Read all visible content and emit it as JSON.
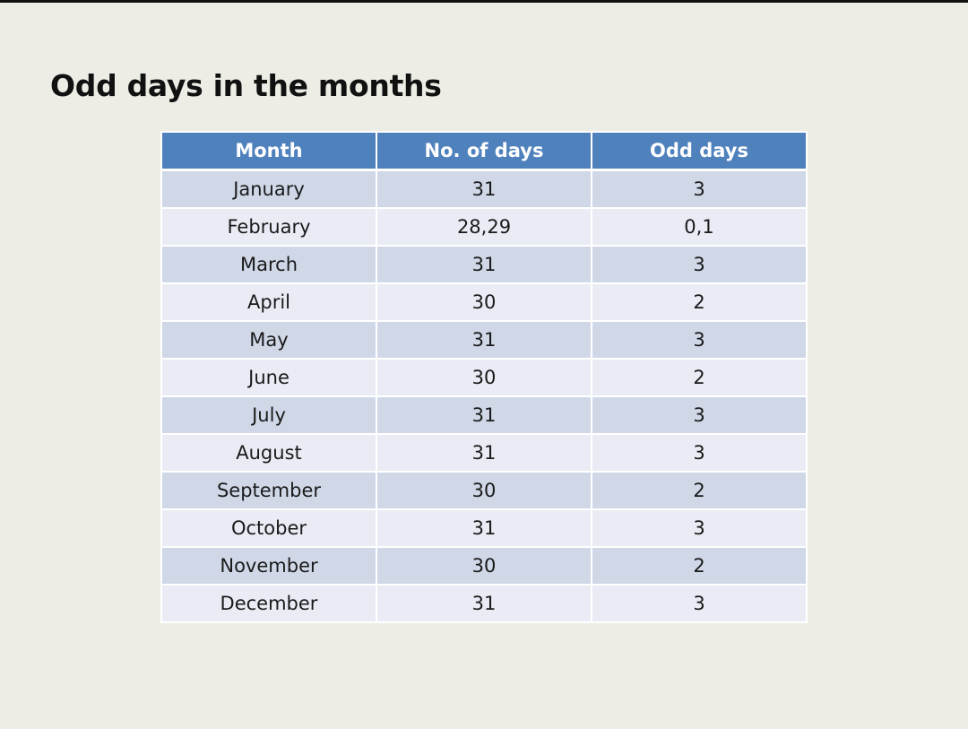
{
  "title": "Odd days in the months",
  "table": {
    "headers": [
      "Month",
      "No. of days",
      "Odd days"
    ],
    "rows": [
      [
        "January",
        "31",
        "3"
      ],
      [
        "February",
        "28,29",
        "0,1"
      ],
      [
        "March",
        "31",
        "3"
      ],
      [
        "April",
        "30",
        "2"
      ],
      [
        "May",
        "31",
        "3"
      ],
      [
        "June",
        "30",
        "2"
      ],
      [
        "July",
        "31",
        "3"
      ],
      [
        "August",
        "31",
        "3"
      ],
      [
        "September",
        "30",
        "2"
      ],
      [
        "October",
        "31",
        "3"
      ],
      [
        "November",
        "30",
        "2"
      ],
      [
        "December",
        "31",
        "3"
      ]
    ]
  },
  "colors": {
    "header_background": "#4f81bd",
    "row_band_dark": "#d0d8e8",
    "row_band_light": "#e9ecf4",
    "page_background": "#edede6"
  }
}
